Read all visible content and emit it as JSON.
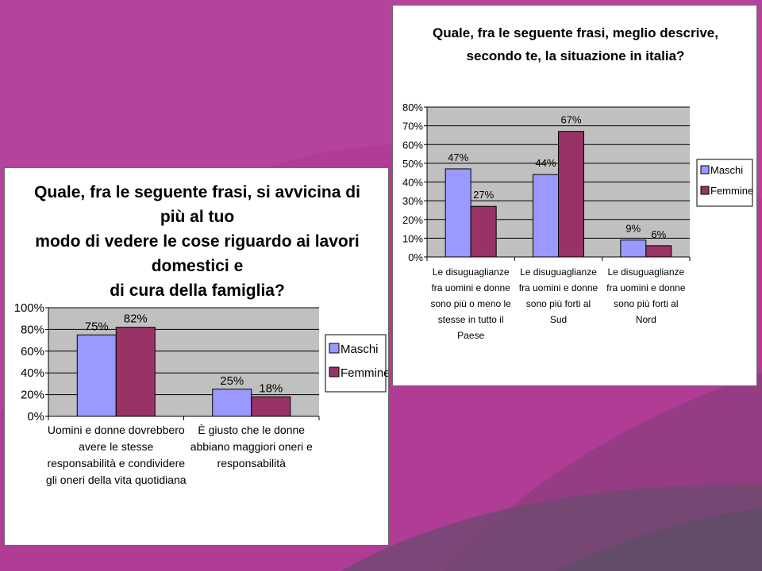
{
  "chart_data": [
    {
      "type": "bar",
      "title": "Quale, fra le seguente frasi, si avvicina di più al tuo modo di vedere le cose riguardo ai lavori domestici e di cura della famiglia?",
      "title_lines": [
        "Quale, fra le seguente frasi, si avvicina di più al tuo",
        "modo di vedere le cose riguardo ai lavori domestici e",
        "di cura della famiglia?"
      ],
      "categories": [
        "Uomini e donne dovrebbero avere le stesse responsabilità e condividere gli oneri della vita quotidiana",
        "È giusto che le donne abbiano maggiori oneri e responsabilità"
      ],
      "category_lines": [
        [
          "Uomini e donne dovrebbero",
          "avere le stesse",
          "responsabilità e condividere",
          "gli oneri della vita quotidiana"
        ],
        [
          "È giusto che le donne",
          "abbiano maggiori oneri e",
          "responsabilità"
        ]
      ],
      "series": [
        {
          "name": "Maschi",
          "values": [
            75,
            25
          ],
          "labels": [
            "75%",
            "25%"
          ],
          "color": "#9999ff"
        },
        {
          "name": "Femmine",
          "values": [
            82,
            18
          ],
          "labels": [
            "82%",
            "18%"
          ],
          "color": "#993366"
        }
      ],
      "yticks": [
        "0%",
        "20%",
        "40%",
        "60%",
        "80%",
        "100%"
      ],
      "ylim": [
        0,
        100
      ],
      "grid": true,
      "legend": "right",
      "plot_bg": "#c0c0c0"
    },
    {
      "type": "bar",
      "title": "Quale, fra le seguente frasi, meglio descrive, secondo te, la situazione in italia?",
      "title_lines": [
        "Quale, fra le seguente frasi, meglio descrive,",
        "secondo te, la situazione in italia?"
      ],
      "categories": [
        "Le disuguaglianze fra uomini e donne sono più o meno le stesse in tutto il Paese",
        "Le disuguaglianze fra uomini e donne sono più forti al Sud",
        "Le disuguaglianze fra uomini e donne sono più forti al Nord"
      ],
      "category_lines": [
        [
          "Le disuguaglianze",
          "fra uomini e donne",
          "sono più o meno le",
          "stesse in tutto il",
          "Paese"
        ],
        [
          "Le disuguaglianze",
          "fra uomini e donne",
          "sono più forti al",
          "Sud"
        ],
        [
          "Le disuguaglianze",
          "fra uomini e donne",
          "sono più forti al",
          "Nord"
        ]
      ],
      "series": [
        {
          "name": "Maschi",
          "values": [
            47,
            44,
            9
          ],
          "labels": [
            "47%",
            "44%",
            "9%"
          ],
          "color": "#9999ff"
        },
        {
          "name": "Femmine",
          "values": [
            27,
            67,
            6
          ],
          "labels": [
            "27%",
            "67%",
            "6%"
          ],
          "color": "#993366"
        }
      ],
      "yticks": [
        "0%",
        "10%",
        "20%",
        "30%",
        "40%",
        "50%",
        "60%",
        "70%",
        "80%"
      ],
      "ylim": [
        0,
        80
      ],
      "grid": true,
      "legend": "right",
      "plot_bg": "#c0c0c0"
    }
  ]
}
